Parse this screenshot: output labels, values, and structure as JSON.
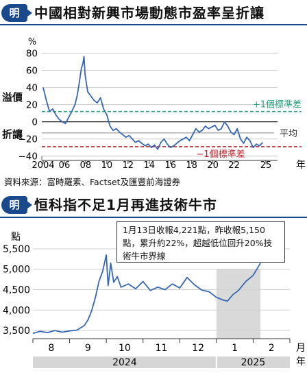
{
  "top_title": "中國相對新興市場動態市盈率呈折讓",
  "bottom_title": "恒科指不足1月再進技術牛市",
  "badge_char": "明",
  "source": "資料來源：富時羅素、Factset及匯豐前海證券",
  "annotation": "1月13日收報4,221點，昨收報5,150點，累升約22%，超越低位回升20%技術牛市界線",
  "colors": {
    "line": "#3567b5",
    "green": "#2aa37a",
    "red": "#c0242b",
    "header": "#1b4a8c",
    "band": "#d9d9d9"
  },
  "chart_data": [
    {
      "type": "line",
      "ylabel": "%",
      "xlabel": "年",
      "ylim": [
        -45,
        82
      ],
      "yticks": [
        -40,
        -20,
        0,
        20,
        40,
        60,
        80
      ],
      "ytick_labels": [
        "−40",
        "−20",
        "0",
        "20",
        "40",
        "60",
        "80"
      ],
      "x_tick_labels": [
        "2004",
        "06",
        "08",
        "10",
        "12",
        "14",
        "16",
        "18",
        "20",
        "22",
        "25"
      ],
      "x_tick_years": [
        2004,
        2006,
        2008,
        2010,
        2012,
        2014,
        2016,
        2018,
        2020,
        2022,
        2025
      ],
      "side_labels": {
        "premium": "溢價",
        "discount": "折讓"
      },
      "reference_lines": [
        {
          "label": "+1個標準差",
          "value": 12,
          "color": "green"
        },
        {
          "label": "平均",
          "value": -13,
          "color": "gray"
        },
        {
          "label": "−1個標準差",
          "value": -29,
          "color": "red"
        }
      ],
      "series": [
        {
          "x": [
            2004.0,
            2004.3,
            2004.6,
            2004.9,
            2005.2,
            2005.5,
            2005.8,
            2006.1,
            2006.4,
            2006.7,
            2007.0,
            2007.2,
            2007.4,
            2007.6,
            2007.75,
            2007.85,
            2007.95,
            2008.2,
            2008.5,
            2008.8,
            2009.1,
            2009.4,
            2009.7,
            2010.0,
            2010.3,
            2010.6,
            2010.9,
            2011.2,
            2011.5,
            2011.8,
            2012.1,
            2012.4,
            2012.7,
            2013.0,
            2013.3,
            2013.6,
            2013.9,
            2014.2,
            2014.5,
            2014.8,
            2015.1,
            2015.4,
            2015.7,
            2016.0,
            2016.3,
            2016.6,
            2016.9,
            2017.2,
            2017.5,
            2017.8,
            2018.1,
            2018.4,
            2018.7,
            2019.0,
            2019.3,
            2019.6,
            2019.9,
            2020.2,
            2020.5,
            2020.8,
            2021.1,
            2021.4,
            2021.7,
            2022.0,
            2022.3,
            2022.6,
            2022.9,
            2023.2,
            2023.5,
            2023.8,
            2024.1,
            2024.4,
            2024.7
          ],
          "values": [
            40,
            25,
            12,
            15,
            8,
            3,
            0,
            -2,
            5,
            12,
            20,
            30,
            45,
            62,
            68,
            76,
            55,
            35,
            30,
            25,
            22,
            28,
            15,
            8,
            -5,
            -10,
            -8,
            -12,
            -15,
            -18,
            -16,
            -20,
            -24,
            -22,
            -25,
            -28,
            -26,
            -30,
            -27,
            -32,
            -24,
            -20,
            -26,
            -30,
            -28,
            -25,
            -22,
            -20,
            -18,
            -22,
            -15,
            -8,
            -12,
            -10,
            -5,
            -8,
            -6,
            -4,
            -10,
            -8,
            0,
            -5,
            -12,
            -15,
            -8,
            -20,
            -25,
            -18,
            -22,
            -30,
            -26,
            -28,
            -24
          ]
        }
      ]
    },
    {
      "type": "line",
      "ylabel": "點",
      "xlabel": "月",
      "ylim": [
        3300,
        5600
      ],
      "yticks": [
        3500,
        4000,
        4500,
        5000,
        5500
      ],
      "ytick_labels": [
        "3,500",
        "4,000",
        "4,500",
        "5,000",
        "5,500"
      ],
      "x_tick_labels": [
        "8",
        "9",
        "10",
        "11",
        "12",
        "1",
        "2"
      ],
      "x_tick_months": [
        0.5,
        1.5,
        2.5,
        3.5,
        4.5,
        5.5,
        6.5
      ],
      "year_labels": [
        "2024",
        "2025"
      ],
      "shaded_months": [
        5.0,
        6.2
      ],
      "series": [
        {
          "x": [
            0.0,
            0.2,
            0.4,
            0.6,
            0.8,
            1.0,
            1.2,
            1.4,
            1.5,
            1.6,
            1.7,
            1.8,
            1.9,
            2.0,
            2.05,
            2.12,
            2.2,
            2.3,
            2.4,
            2.6,
            2.8,
            3.0,
            3.2,
            3.4,
            3.6,
            3.8,
            4.0,
            4.2,
            4.4,
            4.6,
            4.8,
            5.0,
            5.2,
            5.3,
            5.45,
            5.6,
            5.8,
            6.0,
            6.2
          ],
          "values": [
            3430,
            3480,
            3450,
            3500,
            3460,
            3490,
            3510,
            3620,
            3760,
            3980,
            4300,
            4700,
            4950,
            5350,
            4600,
            5150,
            4680,
            4820,
            4560,
            4640,
            4520,
            4700,
            4480,
            4560,
            4500,
            4640,
            4540,
            4800,
            4620,
            4490,
            4450,
            4310,
            4240,
            4221,
            4380,
            4480,
            4700,
            4850,
            5150
          ]
        }
      ]
    }
  ]
}
